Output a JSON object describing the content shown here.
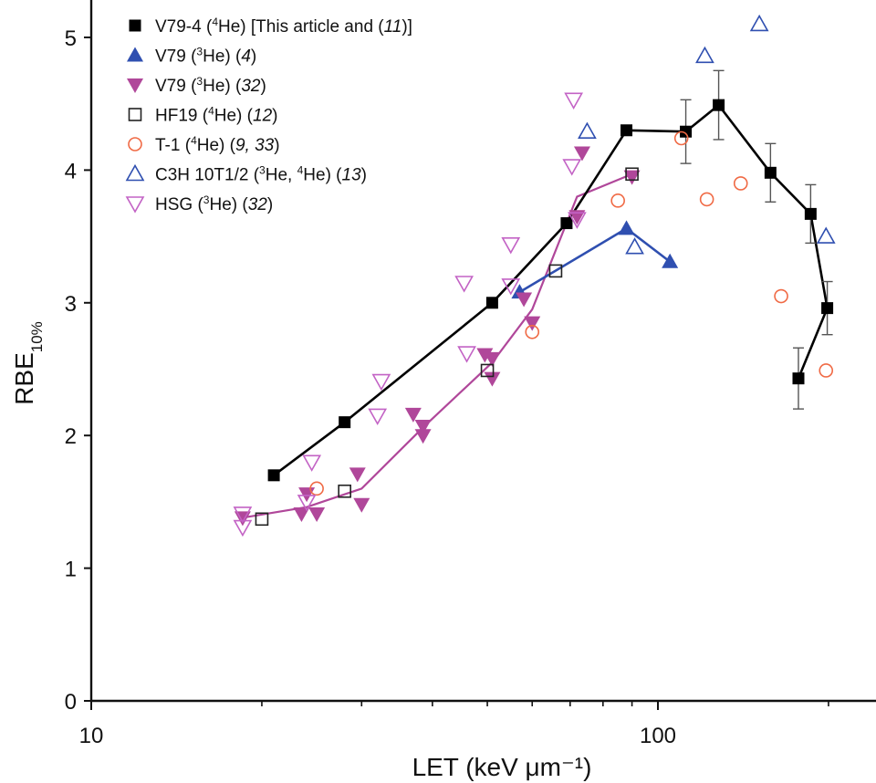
{
  "chart_data": {
    "type": "scatter",
    "xscale": "log",
    "xlim": [
      10,
      260
    ],
    "ylim": [
      0,
      5.3
    ],
    "xticks": [
      {
        "value": 10,
        "label": "10"
      },
      {
        "value": 100,
        "label": "100"
      }
    ],
    "xminor": [
      20,
      30,
      40,
      50,
      60,
      70,
      80,
      90,
      200
    ],
    "yticks": [
      0,
      1,
      2,
      3,
      4,
      5
    ],
    "xlabel": "LET (keV μm⁻¹)",
    "ylabel": "RBE",
    "ylabel_sub": "10%",
    "legend_position": "top-left",
    "series": [
      {
        "name": "V79-4 (⁴He) [This article and (11)]",
        "legend": [
          {
            "t": "V79-4 ("
          },
          {
            "t": "4",
            "sup": true
          },
          {
            "t": "He) [This article and ("
          },
          {
            "t": "11",
            "it": true
          },
          {
            "t": ")]"
          }
        ],
        "marker": "square-filled",
        "color": "#000000",
        "line": true,
        "line_color": "#000000",
        "points": [
          [
            21,
            1.7
          ],
          [
            28,
            2.1
          ],
          [
            51,
            3.0
          ],
          [
            69,
            3.6
          ],
          [
            88,
            4.3
          ],
          [
            112,
            4.29
          ],
          [
            128,
            4.49
          ],
          [
            158,
            3.98
          ],
          [
            186,
            3.67
          ],
          [
            199,
            2.96
          ],
          [
            177,
            2.43
          ]
        ],
        "errors": [
          null,
          null,
          null,
          null,
          null,
          0.24,
          0.26,
          0.22,
          0.22,
          0.2,
          0.23
        ]
      },
      {
        "name": "V79 (³He) (4)",
        "legend": [
          {
            "t": "V79 ("
          },
          {
            "t": "3",
            "sup": true
          },
          {
            "t": "He) ("
          },
          {
            "t": "4",
            "it": true
          },
          {
            "t": ")"
          }
        ],
        "marker": "triangle-up-filled",
        "color": "#2f4fb0",
        "line": true,
        "line_color": "#2f4fb0",
        "points": [
          [
            57,
            3.08
          ],
          [
            88,
            3.56
          ],
          [
            105,
            3.31
          ]
        ]
      },
      {
        "name": "V79 (³He) (32)",
        "legend": [
          {
            "t": "V79 ("
          },
          {
            "t": "3",
            "sup": true
          },
          {
            "t": "He) ("
          },
          {
            "t": "32",
            "it": true
          },
          {
            "t": ")"
          }
        ],
        "marker": "triangle-down-filled",
        "color": "#b0479a",
        "line": false,
        "points": [
          [
            18.5,
            1.38
          ],
          [
            24,
            1.56
          ],
          [
            23.5,
            1.41
          ],
          [
            25,
            1.41
          ],
          [
            29.5,
            1.71
          ],
          [
            30,
            1.48
          ],
          [
            37,
            2.16
          ],
          [
            38.5,
            2.07
          ],
          [
            38.5,
            2.0
          ],
          [
            49.5,
            2.61
          ],
          [
            51,
            2.58
          ],
          [
            51,
            2.43
          ],
          [
            58,
            3.03
          ],
          [
            60,
            2.85
          ],
          [
            72,
            3.65
          ],
          [
            73.5,
            4.13
          ],
          [
            90,
            3.95
          ]
        ]
      },
      {
        "name": "HF19 (⁴He) (12)",
        "legend": [
          {
            "t": "HF19 ("
          },
          {
            "t": "4",
            "sup": true
          },
          {
            "t": "He) ("
          },
          {
            "t": "12",
            "it": true
          },
          {
            "t": ")"
          }
        ],
        "marker": "square-open",
        "color": "#222222",
        "line": false,
        "points": [
          [
            20,
            1.37
          ],
          [
            28,
            1.58
          ],
          [
            50,
            2.49
          ],
          [
            66,
            3.24
          ],
          [
            90,
            3.97
          ]
        ]
      },
      {
        "name": "T-1 (⁴He) (9, 33)",
        "legend": [
          {
            "t": "T-1 ("
          },
          {
            "t": "4",
            "sup": true
          },
          {
            "t": "He) ("
          },
          {
            "t": "9, 33",
            "it": true
          },
          {
            "t": ")"
          }
        ],
        "marker": "circle-open",
        "color": "#f06a45",
        "line": false,
        "points": [
          [
            25,
            1.6
          ],
          [
            60,
            2.78
          ],
          [
            85,
            3.77
          ],
          [
            110,
            4.24
          ],
          [
            122,
            3.78
          ],
          [
            140,
            3.9
          ],
          [
            165,
            3.05
          ],
          [
            198,
            2.49
          ]
        ]
      },
      {
        "name": "C3H 10T1/2 (³He, ⁴He) (13)",
        "legend": [
          {
            "t": "C3H 10T1/2 ("
          },
          {
            "t": "3",
            "sup": true
          },
          {
            "t": "He, "
          },
          {
            "t": "4",
            "sup": true
          },
          {
            "t": "He) ("
          },
          {
            "t": "13",
            "it": true
          },
          {
            "t": ")"
          }
        ],
        "marker": "triangle-up-open",
        "color": "#2f4fb0",
        "line": false,
        "points": [
          [
            75,
            4.29
          ],
          [
            91,
            3.42
          ],
          [
            121,
            4.86
          ],
          [
            151,
            5.1
          ],
          [
            198,
            3.5
          ]
        ]
      },
      {
        "name": "HSG (³He) (32)",
        "legend": [
          {
            "t": "HSG ("
          },
          {
            "t": "3",
            "sup": true
          },
          {
            "t": "He) ("
          },
          {
            "t": "32",
            "it": true
          },
          {
            "t": ")"
          }
        ],
        "marker": "triangle-down-open",
        "color": "#c363c5",
        "line": false,
        "points": [
          [
            18.5,
            1.41
          ],
          [
            18.5,
            1.31
          ],
          [
            24,
            1.5
          ],
          [
            24.5,
            1.8
          ],
          [
            32.5,
            2.41
          ],
          [
            32,
            2.15
          ],
          [
            45.5,
            3.15
          ],
          [
            46,
            2.62
          ],
          [
            55,
            3.44
          ],
          [
            55,
            3.13
          ],
          [
            71,
            4.53
          ],
          [
            70.5,
            4.03
          ],
          [
            72,
            3.63
          ]
        ]
      }
    ],
    "fit_lines": [
      {
        "color": "#b0479a",
        "points": [
          [
            18.5,
            1.38
          ],
          [
            24,
            1.46
          ],
          [
            30,
            1.6
          ],
          [
            38.5,
            2.06
          ],
          [
            51,
            2.55
          ],
          [
            60,
            2.95
          ],
          [
            72,
            3.8
          ],
          [
            90,
            3.97
          ]
        ]
      }
    ]
  }
}
